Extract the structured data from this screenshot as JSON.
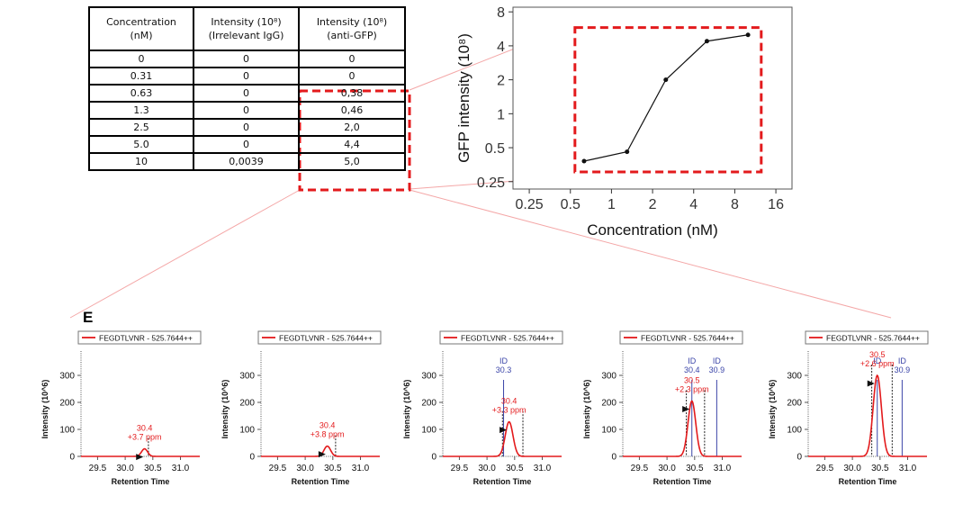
{
  "table": {
    "headers": [
      "Concentration\n(nM)",
      "Intensity (10⁸)\n(Irrelevant IgG)",
      "Intensity (10⁸)\n(anti-GFP)"
    ],
    "rows": [
      [
        "0",
        "0",
        "0"
      ],
      [
        "0.31",
        "0",
        "0"
      ],
      [
        "0.63",
        "0",
        "0,38"
      ],
      [
        "1.3",
        "0",
        "0,46"
      ],
      [
        "2.5",
        "0",
        "2,0"
      ],
      [
        "5.0",
        "0",
        "4,4"
      ],
      [
        "10",
        "0,0039",
        "5,0"
      ]
    ]
  },
  "panel_label": "E",
  "chart_data": [
    {
      "type": "line",
      "xlabel": "Concentration (nM)",
      "ylabel": "GFP intensity (10⁸)",
      "x_scale": "log2",
      "y_scale": "log2",
      "x_ticks": [
        0.25,
        0.5,
        1,
        2,
        4,
        8,
        16
      ],
      "x_tick_labels": [
        "0.25",
        "0.5",
        "1",
        "2",
        "4",
        "8",
        "16"
      ],
      "y_ticks": [
        0.25,
        0.5,
        1,
        2,
        4,
        8
      ],
      "y_tick_labels": [
        "0.25",
        "0.5",
        "1",
        "2",
        "4",
        "8"
      ],
      "xlim": [
        0.19,
        21
      ],
      "ylim": [
        0.215,
        8.8
      ],
      "x": [
        0.63,
        1.3,
        2.5,
        5.0,
        10
      ],
      "y": [
        0.38,
        0.46,
        2.0,
        4.4,
        5.0
      ],
      "series_color": "#111111",
      "highlight_color": "#e31a1c"
    },
    {
      "type": "line",
      "legend": "FEGDTLVNR - 525.7644++",
      "xlabel": "Retention Time",
      "ylabel": "Intensity (10^6)",
      "x_tick_labels": [
        "29.5",
        "30.0",
        "30.5",
        "31.0"
      ],
      "y_tick_labels": [
        "0",
        "100",
        "200",
        "300"
      ],
      "xlim": [
        29.2,
        31.35
      ],
      "ylim": [
        0,
        390
      ],
      "peak_rt": 30.35,
      "peak_height": 28,
      "peak_width": 0.055,
      "apex_label": "30.4",
      "ppm_label": "+3.7 ppm",
      "id_lines": [],
      "boundary_lines": [
        30.42
      ]
    },
    {
      "type": "line",
      "legend": "FEGDTLVNR - 525.7644++",
      "xlabel": "Retention Time",
      "ylabel": "Intensity (10^6)",
      "x_tick_labels": [
        "29.5",
        "30.0",
        "30.5",
        "31.0"
      ],
      "y_tick_labels": [
        "0",
        "100",
        "200",
        "300"
      ],
      "xlim": [
        29.2,
        31.35
      ],
      "ylim": [
        0,
        390
      ],
      "peak_rt": 30.4,
      "peak_height": 38,
      "peak_width": 0.06,
      "apex_label": "30.4",
      "ppm_label": "+3.8 ppm",
      "id_lines": [],
      "boundary_lines": [
        30.55
      ]
    },
    {
      "type": "line",
      "legend": "FEGDTLVNR - 525.7644++",
      "xlabel": "Retention Time",
      "ylabel": "Intensity (10^6)",
      "x_tick_labels": [
        "29.5",
        "30.0",
        "30.5",
        "31.0"
      ],
      "y_tick_labels": [
        "0",
        "100",
        "200",
        "300"
      ],
      "xlim": [
        29.2,
        31.35
      ],
      "ylim": [
        0,
        390
      ],
      "peak_rt": 30.4,
      "peak_height": 128,
      "peak_width": 0.07,
      "apex_label": "30.4",
      "ppm_label": "+3.3 ppm",
      "id_lines": [
        {
          "x": 30.3,
          "label": "ID",
          "value": "30.3"
        }
      ],
      "boundary_lines": [
        30.28,
        30.65
      ]
    },
    {
      "type": "line",
      "legend": "FEGDTLVNR - 525.7644++",
      "xlabel": "Retention Time",
      "ylabel": "Intensity (10^6)",
      "x_tick_labels": [
        "29.5",
        "30.0",
        "30.5",
        "31.0"
      ],
      "y_tick_labels": [
        "0",
        "100",
        "200",
        "300"
      ],
      "xlim": [
        29.2,
        31.35
      ],
      "ylim": [
        0,
        390
      ],
      "peak_rt": 30.45,
      "peak_height": 205,
      "peak_width": 0.07,
      "apex_label": "30.5",
      "ppm_label": "+2.3 ppm",
      "id_lines": [
        {
          "x": 30.45,
          "label": "ID",
          "value": "30.4"
        },
        {
          "x": 30.9,
          "label": "ID",
          "value": "30.9"
        }
      ],
      "boundary_lines": [
        30.35,
        30.68
      ]
    },
    {
      "type": "line",
      "legend": "FEGDTLVNR - 525.7644++",
      "xlabel": "Retention Time",
      "ylabel": "Intensity (10^6)",
      "x_tick_labels": [
        "29.5",
        "30.0",
        "30.5",
        "31.0"
      ],
      "y_tick_labels": [
        "0",
        "100",
        "200",
        "300"
      ],
      "xlim": [
        29.2,
        31.35
      ],
      "ylim": [
        0,
        390
      ],
      "peak_rt": 30.45,
      "peak_height": 300,
      "peak_width": 0.075,
      "apex_label": "30.5",
      "ppm_label": "+2.6 ppm",
      "id_lines": [
        {
          "x": 30.45,
          "label": "ID",
          "value": ""
        },
        {
          "x": 30.9,
          "label": "ID",
          "value": "30.9"
        }
      ],
      "boundary_lines": [
        30.35,
        30.72
      ]
    }
  ]
}
